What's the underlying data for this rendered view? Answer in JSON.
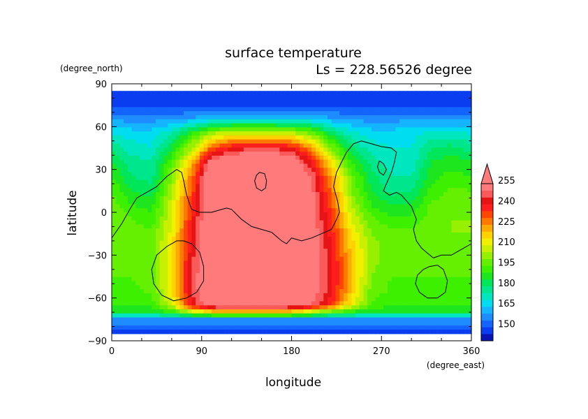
{
  "chart_data": {
    "type": "heatmap",
    "title": "surface temperature",
    "subtitle": "Ls = 228.56526 degree",
    "xlabel": "longitude",
    "ylabel": "latitude",
    "x_unit": "(degree_east)",
    "y_unit": "(degree_north)",
    "xlim": [
      0,
      360
    ],
    "ylim": [
      -90,
      90
    ],
    "x_ticks": [
      0,
      90,
      180,
      270,
      360
    ],
    "y_ticks": [
      90,
      60,
      30,
      0,
      -30,
      -60,
      -90
    ],
    "x_tick_labels": [
      "0",
      "90",
      "180",
      "270",
      "360"
    ],
    "y_tick_labels": [
      "90",
      "60",
      "30",
      "0",
      "−30",
      "−60",
      "−90"
    ],
    "colorbar": {
      "levels": [
        140,
        145,
        150,
        155,
        160,
        165,
        170,
        175,
        180,
        185,
        190,
        195,
        200,
        205,
        210,
        215,
        220,
        225,
        230,
        235,
        240,
        245,
        250,
        255,
        260
      ],
      "tick_labels": [
        "150",
        "165",
        "180",
        "195",
        "210",
        "225",
        "240",
        "255"
      ],
      "colors": [
        "#0a14b4",
        "#0a3cf0",
        "#1464ff",
        "#1e8cff",
        "#14b4ff",
        "#00dcf0",
        "#00e6be",
        "#00e68c",
        "#00e65a",
        "#1ee61e",
        "#3cf000",
        "#64f000",
        "#96f000",
        "#c8f000",
        "#f0f000",
        "#ffd200",
        "#ffaa00",
        "#ff7800",
        "#ff4600",
        "#ff1e1e",
        "#e61414",
        "#fa5a5a",
        "#ff7a7a"
      ],
      "overflow_color": "#ff7a7a",
      "extend": "max"
    },
    "field": {
      "rows_lat": [
        85,
        75,
        65,
        55,
        45,
        35,
        25,
        15,
        5,
        -5,
        -15,
        -25,
        -35,
        -45,
        -55,
        -65,
        -70,
        -75,
        -85
      ],
      "cols_lon": [
        0,
        20,
        40,
        60,
        80,
        100,
        120,
        140,
        160,
        180,
        200,
        220,
        240,
        260,
        280,
        300,
        320,
        340,
        360
      ],
      "values": [
        [
          145,
          145,
          145,
          145,
          145,
          145,
          145,
          145,
          145,
          145,
          145,
          145,
          145,
          145,
          145,
          145,
          145,
          145,
          145
        ],
        [
          147,
          147,
          147,
          147,
          147,
          147,
          147,
          147,
          147,
          147,
          147,
          147,
          147,
          147,
          147,
          147,
          147,
          147,
          147
        ],
        [
          160,
          158,
          158,
          160,
          162,
          166,
          168,
          168,
          168,
          168,
          166,
          162,
          160,
          158,
          158,
          160,
          160,
          160,
          160
        ],
        [
          170,
          168,
          168,
          175,
          190,
          205,
          210,
          210,
          210,
          208,
          200,
          182,
          172,
          168,
          168,
          168,
          172,
          172,
          170
        ],
        [
          178,
          172,
          170,
          185,
          205,
          230,
          240,
          245,
          245,
          240,
          225,
          200,
          180,
          172,
          170,
          170,
          180,
          182,
          178
        ],
        [
          185,
          178,
          175,
          195,
          220,
          255,
          262,
          262,
          262,
          258,
          240,
          215,
          190,
          178,
          172,
          172,
          185,
          188,
          185
        ],
        [
          190,
          180,
          178,
          200,
          228,
          262,
          265,
          265,
          265,
          262,
          250,
          222,
          198,
          182,
          175,
          175,
          188,
          192,
          190
        ],
        [
          195,
          185,
          182,
          205,
          232,
          262,
          265,
          265,
          265,
          262,
          252,
          228,
          200,
          185,
          178,
          180,
          192,
          196,
          195
        ],
        [
          198,
          190,
          188,
          208,
          235,
          262,
          265,
          265,
          265,
          262,
          254,
          232,
          205,
          190,
          185,
          185,
          196,
          198,
          198
        ],
        [
          200,
          195,
          192,
          210,
          238,
          262,
          265,
          265,
          265,
          262,
          255,
          235,
          210,
          196,
          192,
          192,
          198,
          200,
          200
        ],
        [
          200,
          198,
          196,
          212,
          240,
          262,
          265,
          265,
          265,
          262,
          256,
          238,
          215,
          200,
          196,
          196,
          200,
          200,
          200
        ],
        [
          198,
          198,
          198,
          214,
          242,
          262,
          265,
          265,
          265,
          262,
          256,
          240,
          218,
          202,
          198,
          198,
          198,
          198,
          198
        ],
        [
          196,
          196,
          198,
          215,
          244,
          262,
          265,
          265,
          265,
          262,
          256,
          242,
          220,
          202,
          196,
          196,
          196,
          196,
          196
        ],
        [
          195,
          195,
          198,
          215,
          245,
          262,
          265,
          265,
          265,
          262,
          256,
          242,
          220,
          200,
          195,
          195,
          195,
          195,
          195
        ],
        [
          194,
          194,
          196,
          214,
          245,
          262,
          265,
          265,
          265,
          262,
          256,
          242,
          218,
          198,
          194,
          194,
          194,
          194,
          194
        ],
        [
          190,
          190,
          192,
          208,
          240,
          258,
          262,
          262,
          262,
          258,
          250,
          235,
          212,
          195,
          190,
          190,
          190,
          190,
          190
        ],
        [
          185,
          185,
          185,
          190,
          205,
          215,
          220,
          220,
          220,
          215,
          205,
          195,
          188,
          185,
          185,
          185,
          185,
          185,
          185
        ],
        [
          160,
          160,
          160,
          160,
          160,
          160,
          160,
          160,
          160,
          160,
          160,
          160,
          160,
          160,
          160,
          160,
          160,
          160,
          160
        ],
        [
          145,
          145,
          145,
          145,
          145,
          145,
          145,
          145,
          145,
          145,
          145,
          145,
          145,
          145,
          145,
          145,
          145,
          145,
          145
        ]
      ]
    },
    "coastlines": [
      [
        [
          0,
          -18
        ],
        [
          10,
          -8
        ],
        [
          18,
          2
        ],
        [
          25,
          10
        ],
        [
          35,
          14
        ],
        [
          45,
          18
        ],
        [
          55,
          25
        ],
        [
          65,
          30
        ],
        [
          70,
          28
        ],
        [
          72,
          22
        ],
        [
          75,
          12
        ],
        [
          80,
          2
        ],
        [
          88,
          0
        ],
        [
          100,
          0
        ],
        [
          110,
          2
        ],
        [
          115,
          3
        ],
        [
          120,
          2
        ],
        [
          130,
          -5
        ],
        [
          140,
          -10
        ],
        [
          150,
          -12
        ],
        [
          160,
          -14
        ],
        [
          170,
          -20
        ],
        [
          175,
          -22
        ],
        [
          180,
          -18
        ],
        [
          190,
          -20
        ],
        [
          200,
          -18
        ],
        [
          210,
          -15
        ],
        [
          220,
          -12
        ],
        [
          225,
          -5
        ],
        [
          228,
          0
        ],
        [
          226,
          8
        ],
        [
          222,
          18
        ],
        [
          225,
          28
        ],
        [
          230,
          35
        ],
        [
          235,
          42
        ],
        [
          242,
          48
        ],
        [
          250,
          50
        ],
        [
          260,
          48
        ],
        [
          270,
          46
        ],
        [
          280,
          45
        ],
        [
          285,
          42
        ],
        [
          283,
          35
        ],
        [
          280,
          28
        ],
        [
          275,
          20
        ],
        [
          272,
          15
        ],
        [
          278,
          12
        ],
        [
          285,
          14
        ],
        [
          290,
          12
        ],
        [
          295,
          8
        ],
        [
          300,
          4
        ],
        [
          305,
          -5
        ],
        [
          302,
          -12
        ],
        [
          305,
          -20
        ],
        [
          310,
          -25
        ],
        [
          315,
          -28
        ],
        [
          322,
          -32
        ],
        [
          330,
          -30
        ],
        [
          340,
          -30
        ],
        [
          350,
          -26
        ],
        [
          360,
          -22
        ]
      ],
      [
        [
          72,
          -20
        ],
        [
          80,
          -22
        ],
        [
          88,
          -28
        ],
        [
          92,
          -38
        ],
        [
          92,
          -48
        ],
        [
          85,
          -56
        ],
        [
          75,
          -60
        ],
        [
          62,
          -62
        ],
        [
          50,
          -58
        ],
        [
          42,
          -50
        ],
        [
          40,
          -40
        ],
        [
          45,
          -30
        ],
        [
          55,
          -24
        ],
        [
          65,
          -20
        ],
        [
          72,
          -20
        ]
      ],
      [
        [
          318,
          -38
        ],
        [
          326,
          -37
        ],
        [
          332,
          -40
        ],
        [
          336,
          -48
        ],
        [
          334,
          -56
        ],
        [
          326,
          -60
        ],
        [
          316,
          -60
        ],
        [
          308,
          -56
        ],
        [
          304,
          -50
        ],
        [
          306,
          -44
        ],
        [
          312,
          -40
        ],
        [
          318,
          -38
        ]
      ],
      [
        [
          148,
          28
        ],
        [
          153,
          27
        ],
        [
          155,
          22
        ],
        [
          154,
          17
        ],
        [
          150,
          15
        ],
        [
          145,
          17
        ],
        [
          143,
          22
        ],
        [
          145,
          26
        ],
        [
          148,
          28
        ]
      ],
      [
        [
          268,
          36
        ],
        [
          272,
          34
        ],
        [
          275,
          30
        ],
        [
          272,
          26
        ],
        [
          268,
          28
        ],
        [
          266,
          32
        ],
        [
          268,
          36
        ]
      ]
    ]
  }
}
